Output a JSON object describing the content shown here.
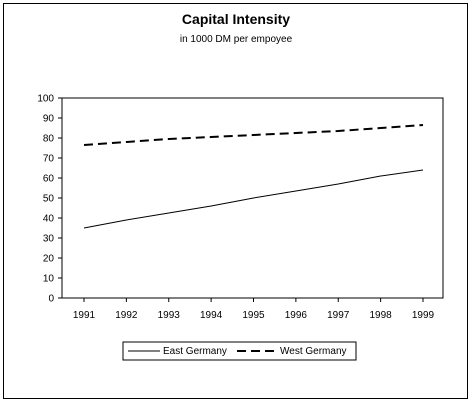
{
  "chart_data": {
    "type": "line",
    "title": "Capital Intensity",
    "subtitle": "in 1000 DM per empoyee",
    "xlabel": "",
    "ylabel": "",
    "x": [
      "1991",
      "1992",
      "1993",
      "1994",
      "1995",
      "1996",
      "1997",
      "1998",
      "1999"
    ],
    "ylim": [
      0,
      100
    ],
    "yticks": [
      0,
      10,
      20,
      30,
      40,
      50,
      60,
      70,
      80,
      90,
      100
    ],
    "grid": false,
    "legend_position": "bottom",
    "series": [
      {
        "name": "East Germany",
        "style": "solid",
        "color": "#000000",
        "values": [
          35,
          39,
          42.5,
          46,
          50,
          53.5,
          57,
          61,
          64
        ]
      },
      {
        "name": "West Germany",
        "style": "dashed",
        "color": "#000000",
        "values": [
          76.5,
          78,
          79.5,
          80.5,
          81.5,
          82.5,
          83.5,
          85,
          86.5
        ]
      }
    ]
  }
}
